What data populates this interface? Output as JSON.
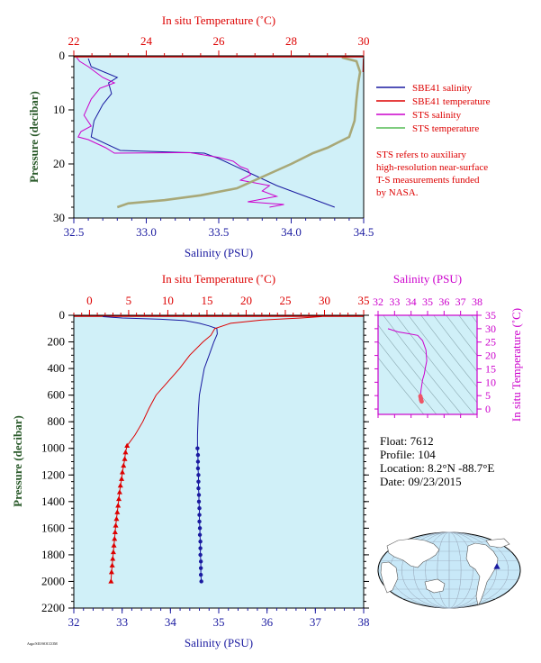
{
  "chart_data": [
    {
      "id": "top",
      "type": "line",
      "bottom_axis_label": "Salinity (PSU)",
      "top_axis_label": "In situ Temperature (˚C)",
      "left_axis_label": "Pressure (decibar)",
      "salinity_range": [
        32.5,
        34.5
      ],
      "temperature_range": [
        22,
        30
      ],
      "pressure_range": [
        0,
        30
      ],
      "salinity_ticks": [
        "32.5",
        "33.0",
        "33.5",
        "34.0",
        "34.5"
      ],
      "temperature_ticks": [
        "22",
        "24",
        "26",
        "28",
        "30"
      ],
      "pressure_ticks": [
        "0",
        "10",
        "20",
        "30"
      ],
      "legend": [
        {
          "name": "SBE41 salinity",
          "color": "#1a1aa0"
        },
        {
          "name": "SBE41 temperature",
          "color": "#dd0000"
        },
        {
          "name": "STS salinity",
          "color": "#cc00cc"
        },
        {
          "name": "STS temperature",
          "color": "#55bb55"
        }
      ],
      "note": [
        "STS refers to auxiliary",
        "high-resolution near-surface",
        "T-S measurements funded",
        "by NASA."
      ],
      "series": [
        {
          "name": "SBE41 salinity",
          "color": "#1a1aa0",
          "points": [
            [
              32.6,
              0.5
            ],
            [
              32.62,
              2
            ],
            [
              32.8,
              4
            ],
            [
              32.74,
              5
            ],
            [
              32.76,
              7
            ],
            [
              32.7,
              9
            ],
            [
              32.64,
              12
            ],
            [
              32.62,
              15
            ],
            [
              32.82,
              17.5
            ],
            [
              33.4,
              18
            ],
            [
              33.5,
              19
            ],
            [
              33.7,
              21.5
            ],
            [
              33.9,
              24
            ],
            [
              34.0,
              25
            ],
            [
              34.2,
              27
            ],
            [
              34.3,
              28
            ]
          ]
        },
        {
          "name": "SBE41 temperature",
          "color": "#dd0000",
          "points": [
            [
              29.99,
              0.5
            ],
            [
              29.98,
              3
            ]
          ]
        },
        {
          "name": "STS salinity",
          "color": "#cc00cc",
          "points": [
            [
              32.52,
              0.3
            ],
            [
              32.54,
              1
            ],
            [
              32.6,
              2
            ],
            [
              32.65,
              3
            ],
            [
              32.7,
              4
            ],
            [
              32.78,
              5
            ],
            [
              32.68,
              6
            ],
            [
              32.62,
              8
            ],
            [
              32.57,
              11
            ],
            [
              32.62,
              13
            ],
            [
              32.55,
              14
            ],
            [
              32.53,
              15
            ],
            [
              32.6,
              15.5
            ],
            [
              32.72,
              17
            ],
            [
              32.78,
              18
            ],
            [
              33.3,
              17.9
            ],
            [
              33.5,
              18.8
            ],
            [
              33.6,
              19.5
            ],
            [
              33.65,
              20.5
            ],
            [
              33.7,
              21
            ],
            [
              33.72,
              22
            ],
            [
              33.65,
              23
            ],
            [
              33.85,
              24
            ],
            [
              33.8,
              25
            ],
            [
              33.9,
              26
            ],
            [
              33.7,
              27
            ],
            [
              33.95,
              27.5
            ],
            [
              33.85,
              28
            ]
          ]
        },
        {
          "name": "STS temperature",
          "color": "#55bb55",
          "points": [
            [
              29.4,
              0.3
            ],
            [
              29.8,
              1
            ],
            [
              29.9,
              3
            ],
            [
              29.85,
              5
            ],
            [
              29.8,
              8
            ],
            [
              29.75,
              12
            ],
            [
              29.6,
              15
            ],
            [
              29.3,
              16
            ],
            [
              29.0,
              17
            ],
            [
              28.6,
              18
            ],
            [
              28.3,
              19
            ],
            [
              28.0,
              20
            ],
            [
              27.5,
              21.5
            ],
            [
              27.0,
              23
            ],
            [
              26.5,
              24.5
            ],
            [
              25.5,
              25.8
            ],
            [
              24.5,
              26.7
            ],
            [
              23.5,
              27.3
            ],
            [
              23.2,
              28
            ]
          ]
        }
      ]
    },
    {
      "id": "main",
      "type": "line",
      "bottom_axis_label": "Salinity (PSU)",
      "top_axis_label": "In situ Temperature (˚C)",
      "left_axis_label": "Pressure (decibar)",
      "salinity_range": [
        32,
        38
      ],
      "temperature_range": [
        -2,
        35
      ],
      "pressure_range": [
        0,
        2200
      ],
      "salinity_ticks": [
        "32",
        "33",
        "34",
        "35",
        "36",
        "37",
        "38"
      ],
      "temperature_ticks": [
        "0",
        "5",
        "10",
        "15",
        "20",
        "25",
        "30",
        "35"
      ],
      "pressure_ticks": [
        "0",
        "200",
        "400",
        "600",
        "800",
        "1000",
        "1200",
        "1400",
        "1600",
        "1800",
        "2000",
        "2200"
      ],
      "series": [
        {
          "name": "salinity",
          "color": "#1a1aa0",
          "points": [
            [
              32.6,
              10
            ],
            [
              33.0,
              20
            ],
            [
              33.8,
              30
            ],
            [
              34.3,
              40
            ],
            [
              34.6,
              60
            ],
            [
              34.8,
              80
            ],
            [
              34.96,
              100
            ],
            [
              34.97,
              140
            ],
            [
              34.9,
              200
            ],
            [
              34.8,
              300
            ],
            [
              34.7,
              400
            ],
            [
              34.65,
              500
            ],
            [
              34.6,
              600
            ],
            [
              34.58,
              700
            ],
            [
              34.57,
              800
            ],
            [
              34.56,
              900
            ],
            [
              34.56,
              1000
            ]
          ],
          "marker_points": [
            [
              34.56,
              1000
            ],
            [
              34.57,
              1050
            ],
            [
              34.57,
              1100
            ],
            [
              34.57,
              1150
            ],
            [
              34.58,
              1200
            ],
            [
              34.58,
              1250
            ],
            [
              34.58,
              1300
            ],
            [
              34.59,
              1350
            ],
            [
              34.59,
              1400
            ],
            [
              34.6,
              1450
            ],
            [
              34.6,
              1500
            ],
            [
              34.6,
              1550
            ],
            [
              34.61,
              1600
            ],
            [
              34.61,
              1650
            ],
            [
              34.62,
              1700
            ],
            [
              34.62,
              1750
            ],
            [
              34.62,
              1800
            ],
            [
              34.63,
              1850
            ],
            [
              34.63,
              1900
            ],
            [
              34.63,
              1950
            ],
            [
              34.64,
              2000
            ]
          ]
        },
        {
          "name": "temperature",
          "color": "#dd0000",
          "points": [
            [
              29.9,
              5
            ],
            [
              29.5,
              10
            ],
            [
              27.0,
              20
            ],
            [
              22.0,
              35
            ],
            [
              18.0,
              60
            ],
            [
              16.0,
              100
            ],
            [
              15.5,
              150
            ],
            [
              14.5,
              200
            ],
            [
              12.8,
              300
            ],
            [
              11.5,
              400
            ],
            [
              10.0,
              500
            ],
            [
              8.5,
              600
            ],
            [
              7.6,
              700
            ],
            [
              6.8,
              800
            ],
            [
              5.8,
              900
            ],
            [
              4.8,
              980
            ]
          ],
          "marker_points": [
            [
              4.8,
              980
            ],
            [
              4.6,
              1030
            ],
            [
              4.5,
              1080
            ],
            [
              4.35,
              1130
            ],
            [
              4.2,
              1180
            ],
            [
              4.1,
              1230
            ],
            [
              3.95,
              1280
            ],
            [
              3.85,
              1330
            ],
            [
              3.75,
              1380
            ],
            [
              3.65,
              1430
            ],
            [
              3.55,
              1480
            ],
            [
              3.45,
              1530
            ],
            [
              3.35,
              1580
            ],
            [
              3.27,
              1630
            ],
            [
              3.2,
              1680
            ],
            [
              3.12,
              1730
            ],
            [
              3.05,
              1780
            ],
            [
              2.97,
              1830
            ],
            [
              2.9,
              1880
            ],
            [
              2.82,
              1930
            ],
            [
              2.75,
              2000
            ]
          ]
        }
      ]
    },
    {
      "id": "ts",
      "type": "scatter",
      "top_axis_label": "Salinity (PSU)",
      "right_axis_label": "In situ Temperature (˚C)",
      "salinity_range": [
        32,
        38
      ],
      "temperature_range": [
        -2,
        35
      ],
      "salinity_ticks": [
        "32",
        "33",
        "34",
        "35",
        "36",
        "37",
        "38"
      ],
      "temperature_ticks": [
        "0",
        "5",
        "10",
        "15",
        "20",
        "25",
        "30",
        "35"
      ],
      "series": [
        {
          "name": "T-S",
          "color": "#cc00cc",
          "points": [
            [
              32.6,
              30
            ],
            [
              33.2,
              28.8
            ],
            [
              33.8,
              28.2
            ],
            [
              34.4,
              27.5
            ],
            [
              34.7,
              25.5
            ],
            [
              34.9,
              22
            ],
            [
              34.95,
              18
            ],
            [
              34.85,
              15
            ],
            [
              34.8,
              13
            ],
            [
              34.7,
              11
            ],
            [
              34.65,
              9
            ],
            [
              34.6,
              7
            ],
            [
              34.58,
              5.5
            ]
          ],
          "marker_points": [
            [
              34.56,
              4.8
            ],
            [
              34.58,
              4.3
            ],
            [
              34.6,
              3.9
            ],
            [
              34.6,
              3.5
            ],
            [
              34.62,
              3.2
            ],
            [
              34.63,
              3.0
            ],
            [
              34.64,
              2.8
            ]
          ]
        }
      ]
    }
  ],
  "float_info": {
    "float": "Float:  7612",
    "profile": "Profile:  104",
    "location": "Location:  8.2°N  -88.7°E",
    "date": "Date:  09/23/2015"
  },
  "map": {
    "float_lat": 8.2,
    "float_lon": -88.7
  },
  "colors": {
    "plot_bg": "#d0f0f8",
    "salinity": "#1a1aa0",
    "temperature": "#dd0000",
    "sts": "#cc00cc",
    "pressure_label": "#2a5a2a"
  }
}
